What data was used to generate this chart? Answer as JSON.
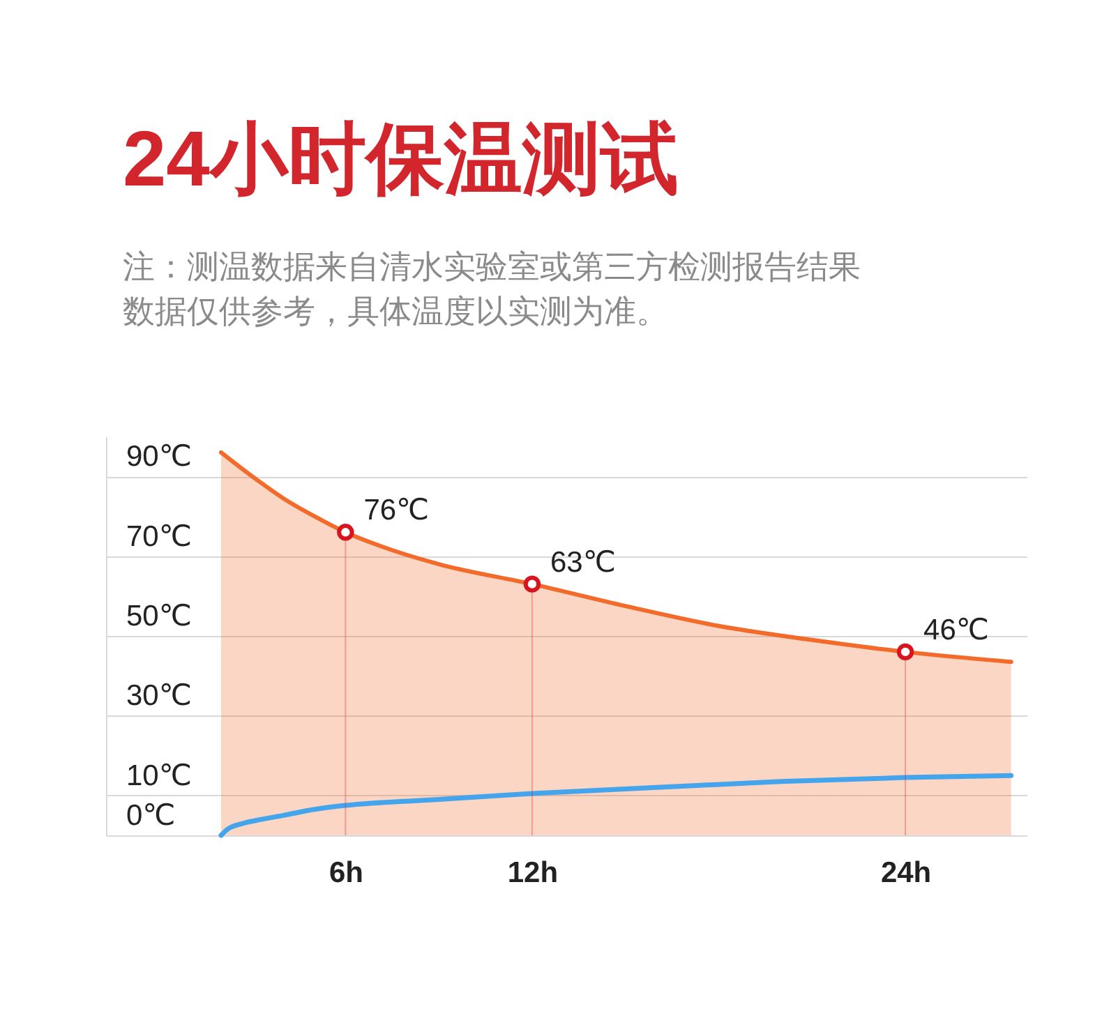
{
  "chart_data": {
    "type": "line",
    "title": "24小时保温测试",
    "subtitle": "注：测温数据来自清水实验室或第三方检测报告结果数据仅供参考，具体温度以实测为准。",
    "xlim": [
      -1.7,
      27.9
    ],
    "xticks": [
      {
        "value": 6,
        "label": "6h"
      },
      {
        "value": 12,
        "label": "12h"
      },
      {
        "value": 24,
        "label": "24h"
      }
    ],
    "ylim": [
      0,
      100
    ],
    "yticks": [
      {
        "value": 0,
        "label": "0℃"
      },
      {
        "value": 10,
        "label": "10℃"
      },
      {
        "value": 30,
        "label": "30℃"
      },
      {
        "value": 50,
        "label": "50℃"
      },
      {
        "value": 70,
        "label": "70℃"
      },
      {
        "value": 90,
        "label": "90℃"
      }
    ],
    "grid": "y",
    "series": [
      {
        "type": "area",
        "color": "#f26b2a",
        "x": [
          2,
          3,
          4,
          5,
          6,
          7.5,
          9,
          12,
          15,
          18,
          21,
          24,
          27.4
        ],
        "values": [
          96,
          90,
          84.5,
          80,
          76,
          71.5,
          68,
          63,
          57.5,
          52.5,
          49,
          46,
          43.5
        ]
      },
      {
        "color": "#45a5ec",
        "x": [
          2,
          2.2,
          2.7,
          3.3,
          4,
          5,
          6,
          9,
          12,
          16,
          20,
          24,
          27.4
        ],
        "values": [
          0,
          1.5,
          3,
          4,
          5,
          6.5,
          7.5,
          9,
          10.5,
          12,
          13.5,
          14.5,
          15
        ]
      },
      {
        "type": "lollipop",
        "color": "#d8141e",
        "marker": "circle",
        "x": [
          6,
          12,
          24
        ],
        "values": [
          76,
          63,
          46
        ],
        "value_labels": [
          "76℃",
          "63℃",
          "46℃"
        ]
      }
    ]
  }
}
